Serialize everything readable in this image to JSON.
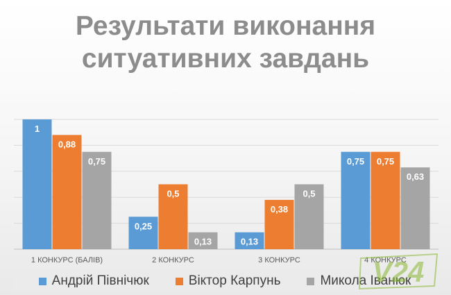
{
  "chart_data": {
    "type": "bar",
    "title_lines": [
      "Результати виконання",
      "ситуативних завдань"
    ],
    "categories": [
      "1 КОНКУРС (БАЛІВ)",
      "2 КОНКУРС",
      "3 КОНКУРС",
      "4 КОНКУРС"
    ],
    "series": [
      {
        "name": "Андрій Північюк",
        "color": "#5b9bd5",
        "values": [
          1,
          0.25,
          0.13,
          0.75
        ],
        "labels": [
          "1",
          "0,25",
          "0,13",
          "0,75"
        ]
      },
      {
        "name": "Віктор Карпунь",
        "color": "#ed7d31",
        "values": [
          0.88,
          0.5,
          0.38,
          0.75
        ],
        "labels": [
          "0,88",
          "0,5",
          "0,38",
          "0,75"
        ]
      },
      {
        "name": "Микола Іванюк",
        "color": "#a5a5a5",
        "values": [
          0.75,
          0.13,
          0.5,
          0.63
        ],
        "labels": [
          "0,75",
          "0,13",
          "0,5",
          "0,63"
        ]
      }
    ],
    "ylim": [
      0,
      1
    ],
    "grid": true,
    "legend_position": "bottom"
  },
  "watermark": {
    "text": "V24",
    "color": "#8ab832"
  }
}
